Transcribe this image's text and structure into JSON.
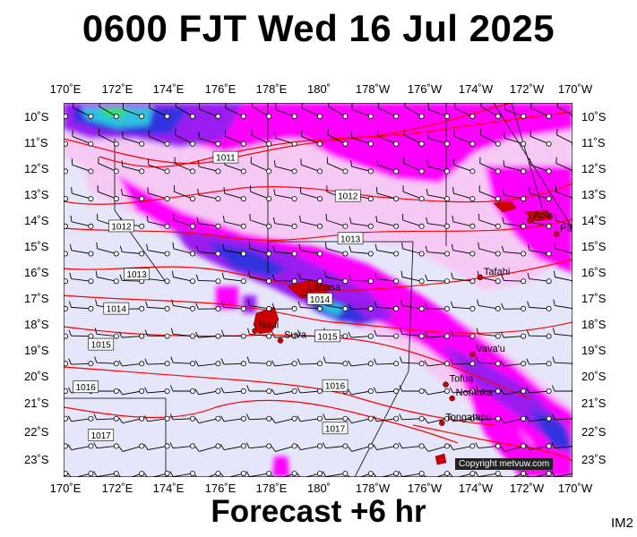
{
  "title": "0600 FJT Wed 16 Jul 2025",
  "footer": "Forecast +6 hr",
  "corner_tag": "IM2",
  "copyright": "Copyright metvuw.com",
  "lon_labels": [
    "170˚E",
    "172˚E",
    "174˚E",
    "176˚E",
    "178˚E",
    "180˚",
    "178˚W",
    "176˚W",
    "174˚W",
    "172˚W",
    "170˚W"
  ],
  "lat_labels": [
    "10˚S",
    "11˚S",
    "12˚S",
    "13˚S",
    "14˚S",
    "15˚S",
    "16˚S",
    "17˚S",
    "18˚S",
    "19˚S",
    "20˚S",
    "21˚S",
    "22˚S",
    "23˚S"
  ],
  "places": [
    {
      "name": "Apia",
      "lon": -171.75,
      "lat": -13.8
    },
    {
      "name": "Pago Pago",
      "lon": -170.7,
      "lat": -14.28
    },
    {
      "name": "Tafahi",
      "lon": -173.7,
      "lat": -15.85
    },
    {
      "name": "Labasa",
      "lon": 179.4,
      "lat": -16.43
    },
    {
      "name": "Nadi",
      "lon": 177.45,
      "lat": -17.8
    },
    {
      "name": "Suva",
      "lon": 178.45,
      "lat": -18.15
    },
    {
      "name": "Vava'u",
      "lon": -174.0,
      "lat": -18.65
    },
    {
      "name": "Tofua",
      "lon": -175.05,
      "lat": -19.75
    },
    {
      "name": "Nomuka",
      "lon": -174.8,
      "lat": -20.25
    },
    {
      "name": "Tongatapu",
      "lon": -175.2,
      "lat": -21.15
    }
  ],
  "isobars": [
    {
      "label": "1011",
      "label_lon": 176.3,
      "label_lat": -11.5
    },
    {
      "label": "1012",
      "label_lon": -178.9,
      "label_lat": -12.9
    },
    {
      "label": "1012",
      "label_lon": 172.2,
      "label_lat": -14.0
    },
    {
      "label": "1013",
      "label_lon": -178.8,
      "label_lat": -14.45
    },
    {
      "label": "1013",
      "label_lon": 172.8,
      "label_lat": -15.75
    },
    {
      "label": "1014",
      "label_lon": 180.0,
      "label_lat": -16.65
    },
    {
      "label": "1014",
      "label_lon": 172.0,
      "label_lat": -17.0
    },
    {
      "label": "1015",
      "label_lon": 180.3,
      "label_lat": -18.0
    },
    {
      "label": "1015",
      "label_lon": 171.4,
      "label_lat": -18.3
    },
    {
      "label": "1016",
      "label_lon": -179.4,
      "label_lat": -19.8
    },
    {
      "label": "1016",
      "label_lon": 170.8,
      "label_lat": -19.85
    },
    {
      "label": "1017",
      "label_lon": -179.4,
      "label_lat": -21.35
    },
    {
      "label": "1017",
      "label_lon": 171.4,
      "label_lat": -21.6
    }
  ],
  "colors": {
    "background_field": "#e6e6fa",
    "rain_light": "#f6c9f4",
    "rain_moderate": "#ff00ff",
    "rain_heavy": "#9a1ef0",
    "rain_very_heavy": "#3030e0",
    "rain_extreme": "#2ec0e0",
    "rain_max": "#33e070",
    "isobar": "#ff0000",
    "land": "#cc0000",
    "grid": "#000000"
  },
  "icons": [
    "wind-barb-icon",
    "station-circle-icon",
    "town-dot-icon"
  ]
}
